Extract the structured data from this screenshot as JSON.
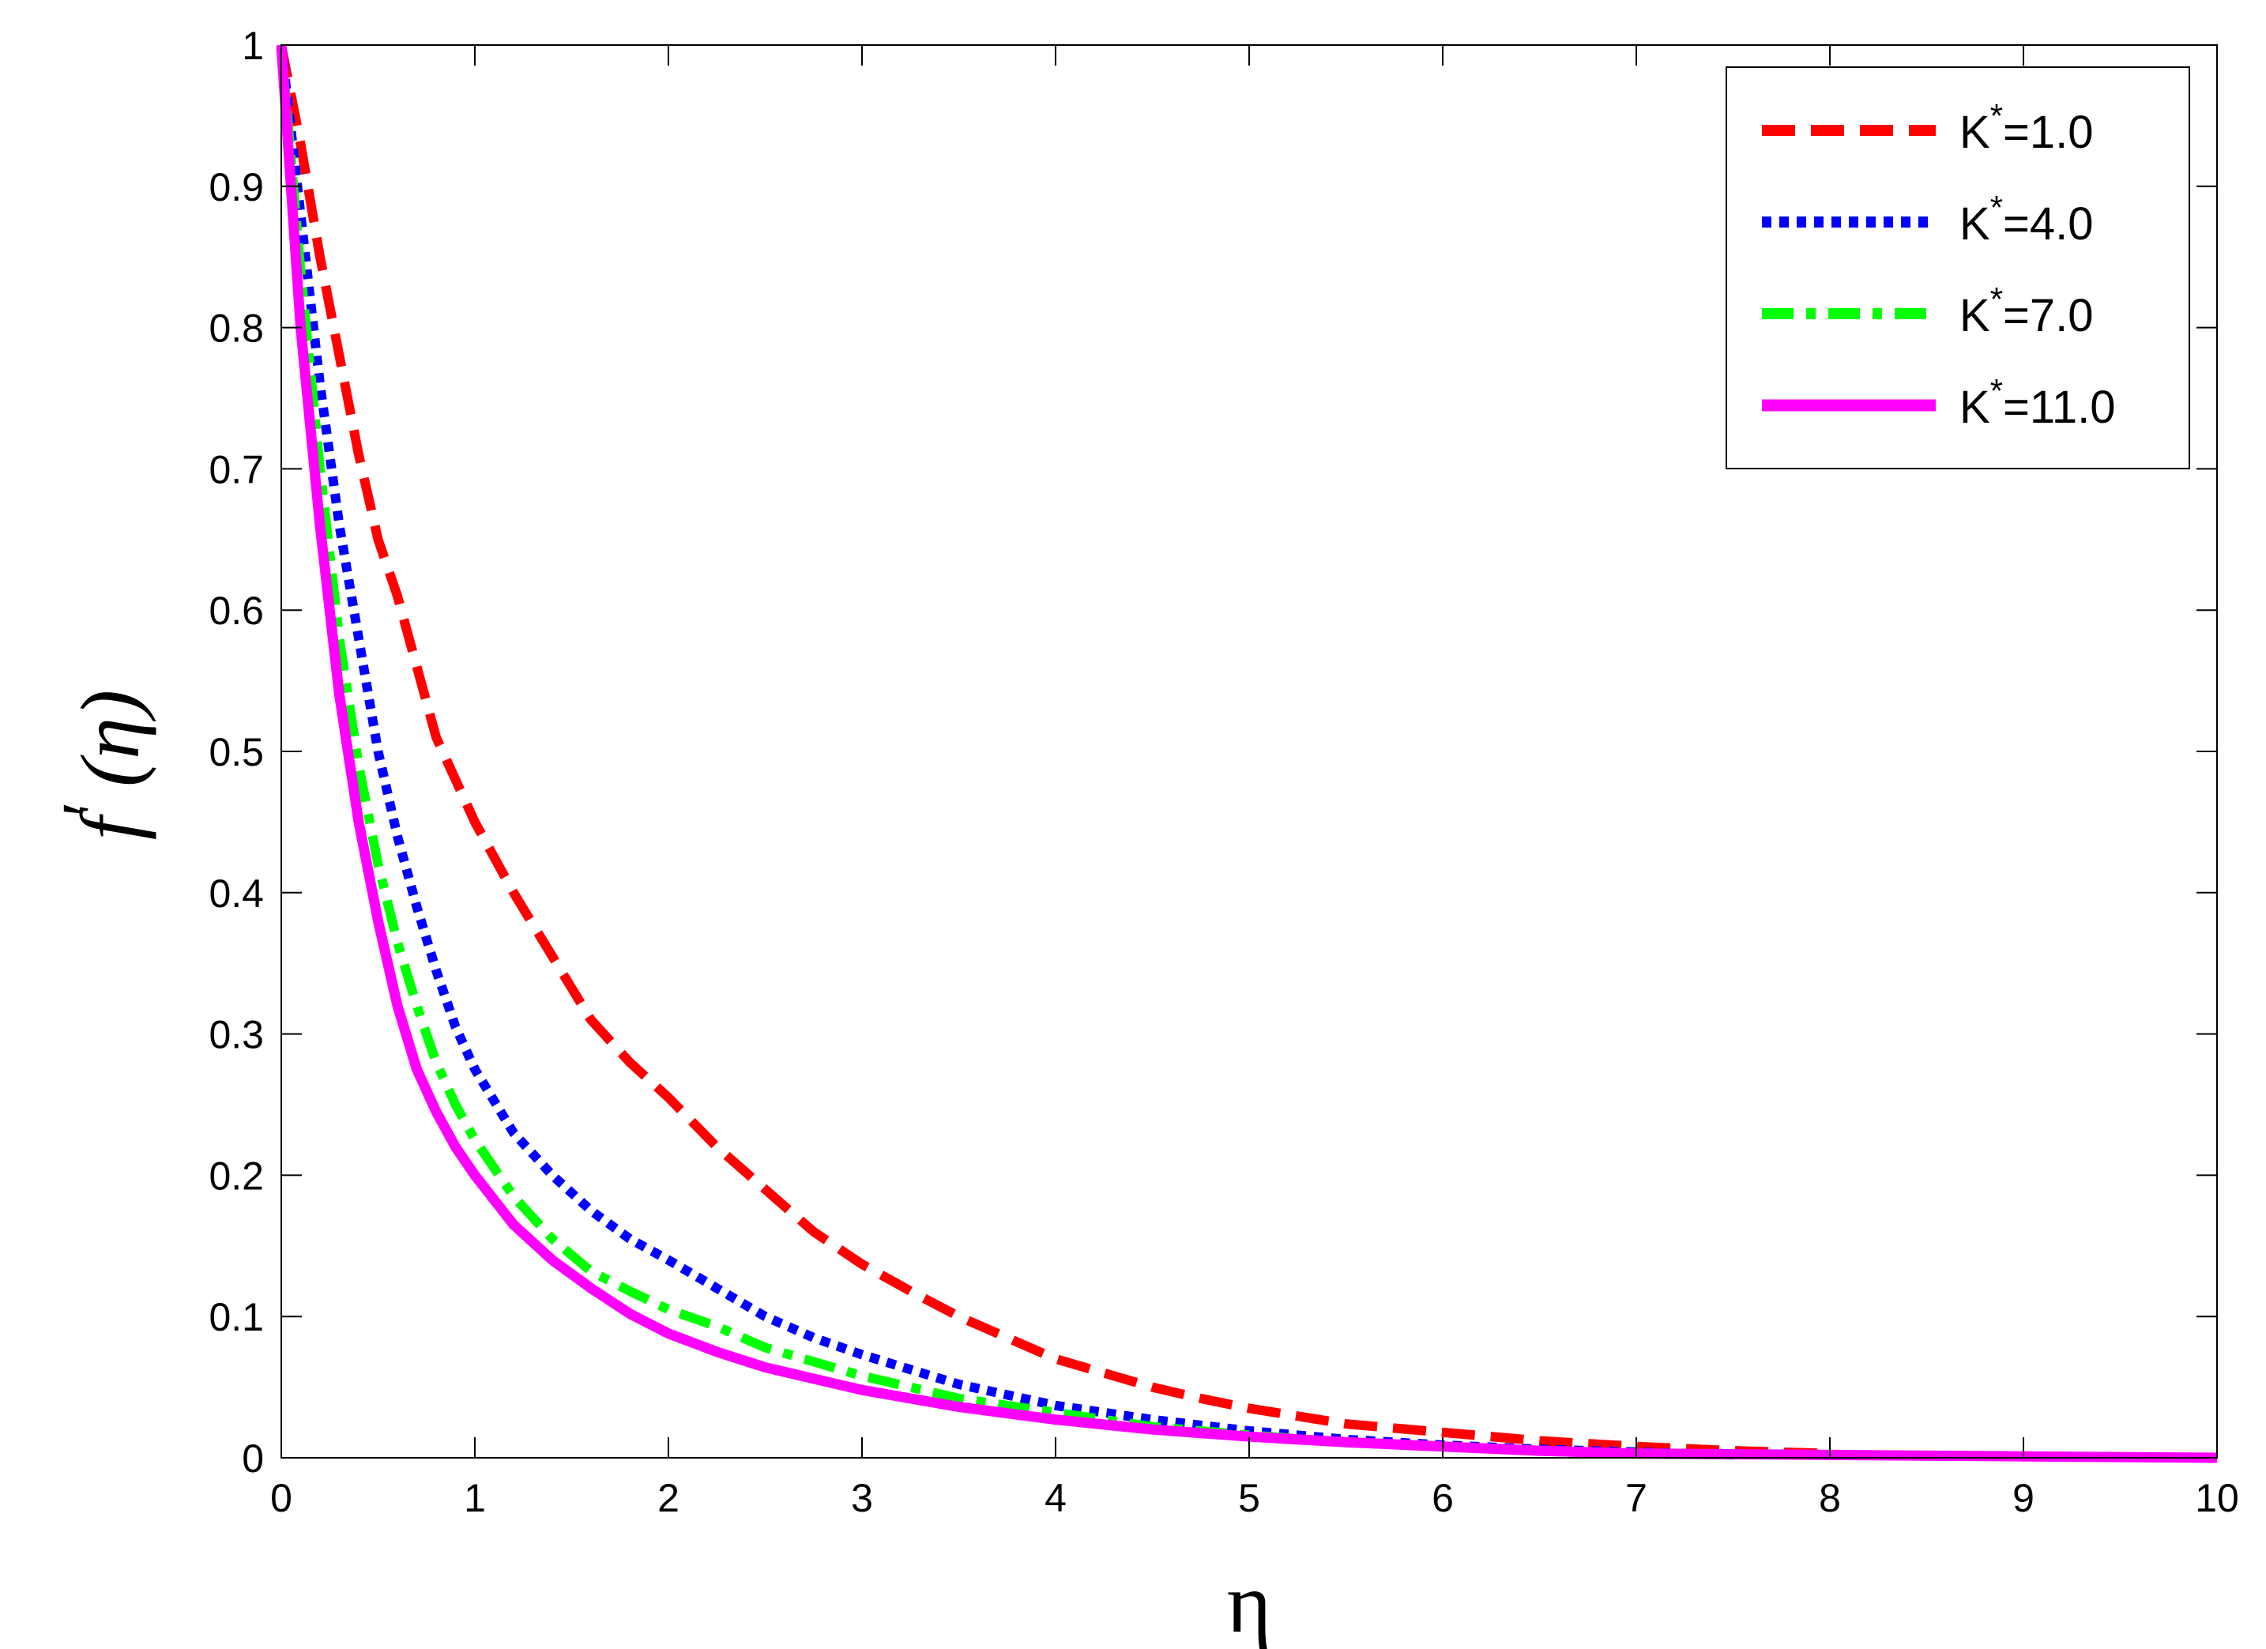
{
  "chart_data": {
    "type": "line",
    "title": "",
    "xlabel": "η",
    "ylabel_main": "f",
    "ylabel_prime": "′",
    "ylabel_arg": "(η)",
    "xlim": [
      0,
      10
    ],
    "ylim": [
      0,
      1
    ],
    "xticks": [
      0,
      1,
      2,
      3,
      4,
      5,
      6,
      7,
      8,
      9,
      10
    ],
    "xtick_labels": [
      "0",
      "1",
      "2",
      "3",
      "4",
      "5",
      "6",
      "7",
      "8",
      "9",
      "10"
    ],
    "yticks": [
      0,
      0.1,
      0.2,
      0.3,
      0.4,
      0.5,
      0.6,
      0.7,
      0.8,
      0.9,
      1
    ],
    "ytick_labels": [
      "0",
      "0.1",
      "0.2",
      "0.3",
      "0.4",
      "0.5",
      "0.6",
      "0.7",
      "0.8",
      "0.9",
      "1"
    ],
    "grid": false,
    "legend_position": "top-right",
    "series": [
      {
        "name": "K*=1.0",
        "name_base": "K",
        "name_sup": "*",
        "name_value": "=1.0",
        "color": "#ff0000",
        "style": "dashed",
        "x": [
          0,
          0.1,
          0.2,
          0.3,
          0.4,
          0.5,
          0.6,
          0.7,
          0.8,
          0.9,
          1.0,
          1.2,
          1.4,
          1.6,
          1.8,
          2.0,
          2.25,
          2.5,
          2.75,
          3.0,
          3.25,
          3.5,
          3.75,
          4.0,
          4.25,
          4.5,
          4.75,
          5.0,
          5.5,
          6.0,
          6.5,
          7.0,
          7.5,
          8.0
        ],
        "values": [
          1.0,
          0.93,
          0.85,
          0.78,
          0.71,
          0.65,
          0.61,
          0.56,
          0.51,
          0.48,
          0.45,
          0.4,
          0.355,
          0.31,
          0.28,
          0.255,
          0.22,
          0.19,
          0.16,
          0.137,
          0.118,
          0.1,
          0.085,
          0.07,
          0.06,
          0.05,
          0.042,
          0.035,
          0.024,
          0.018,
          0.012,
          0.008,
          0.005,
          0.003
        ]
      },
      {
        "name": "K*=4.0",
        "name_base": "K",
        "name_sup": "*",
        "name_value": "=4.0",
        "color": "#0000ff",
        "style": "dotted",
        "x": [
          0,
          0.1,
          0.2,
          0.3,
          0.4,
          0.5,
          0.6,
          0.7,
          0.8,
          0.9,
          1.0,
          1.2,
          1.4,
          1.6,
          1.8,
          2.0,
          2.25,
          2.5,
          2.75,
          3.0,
          3.5,
          4.0,
          4.5,
          5.0,
          5.5,
          6.0,
          6.5,
          7.0,
          7.5
        ],
        "values": [
          1.0,
          0.88,
          0.76,
          0.66,
          0.58,
          0.5,
          0.44,
          0.39,
          0.345,
          0.305,
          0.275,
          0.23,
          0.2,
          0.175,
          0.155,
          0.14,
          0.12,
          0.1,
          0.085,
          0.073,
          0.052,
          0.037,
          0.027,
          0.019,
          0.013,
          0.009,
          0.006,
          0.004,
          0.002
        ]
      },
      {
        "name": "K*=7.0",
        "name_base": "K",
        "name_sup": "*",
        "name_value": "=7.0",
        "color": "#00ff00",
        "style": "dashdot",
        "x": [
          0,
          0.1,
          0.2,
          0.3,
          0.4,
          0.5,
          0.6,
          0.7,
          0.8,
          0.9,
          1.0,
          1.2,
          1.4,
          1.6,
          1.8,
          2.0,
          2.25,
          2.5,
          2.75,
          3.0,
          3.5,
          4.0,
          4.5,
          5.0,
          5.5,
          6.0,
          6.5,
          7.0,
          7.5
        ],
        "values": [
          1.0,
          0.84,
          0.7,
          0.58,
          0.49,
          0.42,
          0.365,
          0.32,
          0.28,
          0.25,
          0.225,
          0.185,
          0.155,
          0.132,
          0.118,
          0.105,
          0.093,
          0.078,
          0.068,
          0.058,
          0.042,
          0.032,
          0.022,
          0.016,
          0.011,
          0.008,
          0.005,
          0.003,
          0.002
        ]
      },
      {
        "name": "K*=11.0",
        "name_base": "K",
        "name_sup": "*",
        "name_value": "=11.0",
        "color": "#ff00ff",
        "style": "solid",
        "x": [
          0,
          0.1,
          0.2,
          0.3,
          0.4,
          0.5,
          0.6,
          0.7,
          0.8,
          0.9,
          1.0,
          1.2,
          1.4,
          1.6,
          1.8,
          2.0,
          2.25,
          2.5,
          2.75,
          3.0,
          3.5,
          4.0,
          4.5,
          5.0,
          5.5,
          6.0,
          6.5,
          7.0,
          8.0,
          9.0,
          10.0
        ],
        "values": [
          1.0,
          0.8,
          0.66,
          0.54,
          0.45,
          0.38,
          0.32,
          0.275,
          0.245,
          0.22,
          0.2,
          0.165,
          0.14,
          0.12,
          0.102,
          0.088,
          0.075,
          0.064,
          0.056,
          0.048,
          0.036,
          0.027,
          0.02,
          0.015,
          0.011,
          0.008,
          0.005,
          0.003,
          0.002,
          0.001,
          0.0
        ]
      }
    ]
  }
}
